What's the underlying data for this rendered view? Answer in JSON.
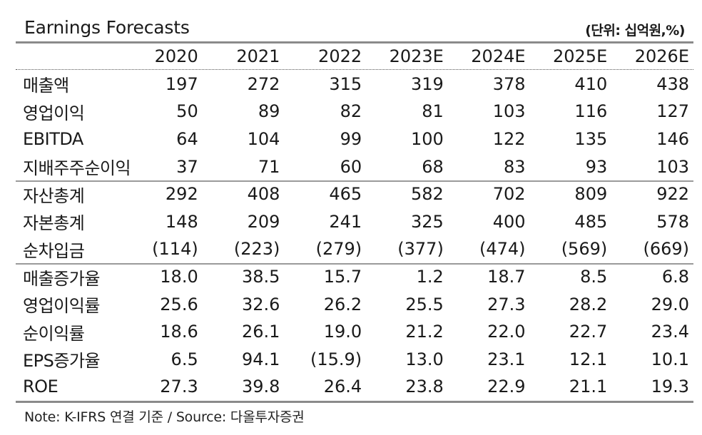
{
  "title": "Earnings Forecasts",
  "unit": "(단위: 십억원,%)",
  "columns": [
    "2020",
    "2021",
    "2022",
    "2023E",
    "2024E",
    "2025E",
    "2026E"
  ],
  "rows": [
    {
      "label": "매출액",
      "values": [
        "197",
        "272",
        "315",
        "319",
        "378",
        "410",
        "438"
      ]
    },
    {
      "label": "영업이익",
      "values": [
        "50",
        "89",
        "82",
        "81",
        "103",
        "116",
        "127"
      ]
    },
    {
      "label": "EBITDA",
      "values": [
        "64",
        "104",
        "99",
        "100",
        "122",
        "135",
        "146"
      ]
    },
    {
      "label": "지배주주순이익",
      "values": [
        "37",
        "71",
        "60",
        "68",
        "83",
        "93",
        "103"
      ]
    },
    {
      "label": "자산총계",
      "values": [
        "292",
        "408",
        "465",
        "582",
        "702",
        "809",
        "922"
      ]
    },
    {
      "label": "자본총계",
      "values": [
        "148",
        "209",
        "241",
        "325",
        "400",
        "485",
        "578"
      ]
    },
    {
      "label": "순차입금",
      "values": [
        "(114)",
        "(223)",
        "(279)",
        "(377)",
        "(474)",
        "(569)",
        "(669)"
      ]
    },
    {
      "label": "매출증가율",
      "values": [
        "18.0",
        "38.5",
        "15.7",
        "1.2",
        "18.7",
        "8.5",
        "6.8"
      ]
    },
    {
      "label": "영업이익률",
      "values": [
        "25.6",
        "32.6",
        "26.2",
        "25.5",
        "27.3",
        "28.2",
        "29.0"
      ]
    },
    {
      "label": "순이익률",
      "values": [
        "18.6",
        "26.1",
        "19.0",
        "21.2",
        "22.0",
        "22.7",
        "23.4"
      ]
    },
    {
      "label": "EPS증가율",
      "values": [
        "6.5",
        "94.1",
        "(15.9)",
        "13.0",
        "23.1",
        "12.1",
        "10.1"
      ]
    },
    {
      "label": "ROE",
      "values": [
        "27.3",
        "39.8",
        "26.4",
        "23.8",
        "22.9",
        "21.1",
        "19.3"
      ]
    }
  ],
  "note": "Note: K-IFRS 연결 기준 / Source: 다올투자증권"
}
